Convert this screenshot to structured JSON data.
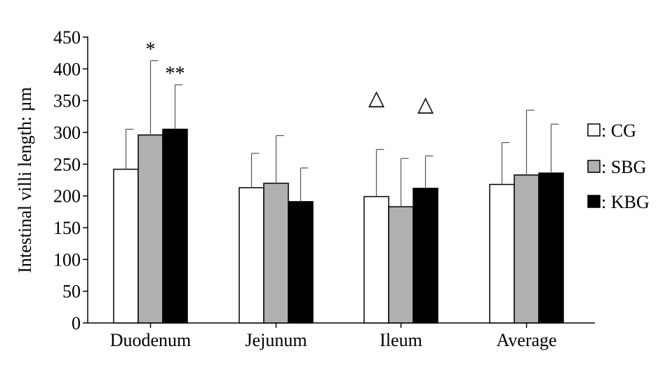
{
  "chart_data": {
    "type": "bar",
    "title": "",
    "xlabel": "",
    "ylabel": "Intestinal villi length: µm",
    "ylim": [
      0,
      450
    ],
    "yticks": [
      0,
      50,
      100,
      150,
      200,
      250,
      300,
      350,
      400,
      450
    ],
    "categories": [
      "Duodenum",
      "Jejunum",
      "Ileum",
      "Average"
    ],
    "series": [
      {
        "name": "CG",
        "color": "#ffffff",
        "values": [
          242,
          213,
          199,
          218
        ],
        "error": [
          63,
          54,
          74,
          66
        ]
      },
      {
        "name": "SBG",
        "color": "#b0b0b0",
        "values": [
          296,
          220,
          183,
          233
        ],
        "error": [
          117,
          75,
          76,
          102
        ]
      },
      {
        "name": "KBG",
        "color": "#000000",
        "values": [
          305,
          191,
          212,
          236
        ],
        "error": [
          70,
          53,
          51,
          77
        ]
      }
    ],
    "legend": {
      "position": "right",
      "entries": [
        ": CG",
        ": SBG",
        ": KBG"
      ]
    },
    "annotations": [
      {
        "text": "*",
        "category": "Duodenum",
        "series": "SBG"
      },
      {
        "text": "**",
        "category": "Duodenum",
        "series": "KBG"
      },
      {
        "text": "△",
        "category": "Ileum",
        "series": "CG"
      },
      {
        "text": "△",
        "category": "Ileum",
        "series": "KBG"
      }
    ],
    "grid": false
  }
}
